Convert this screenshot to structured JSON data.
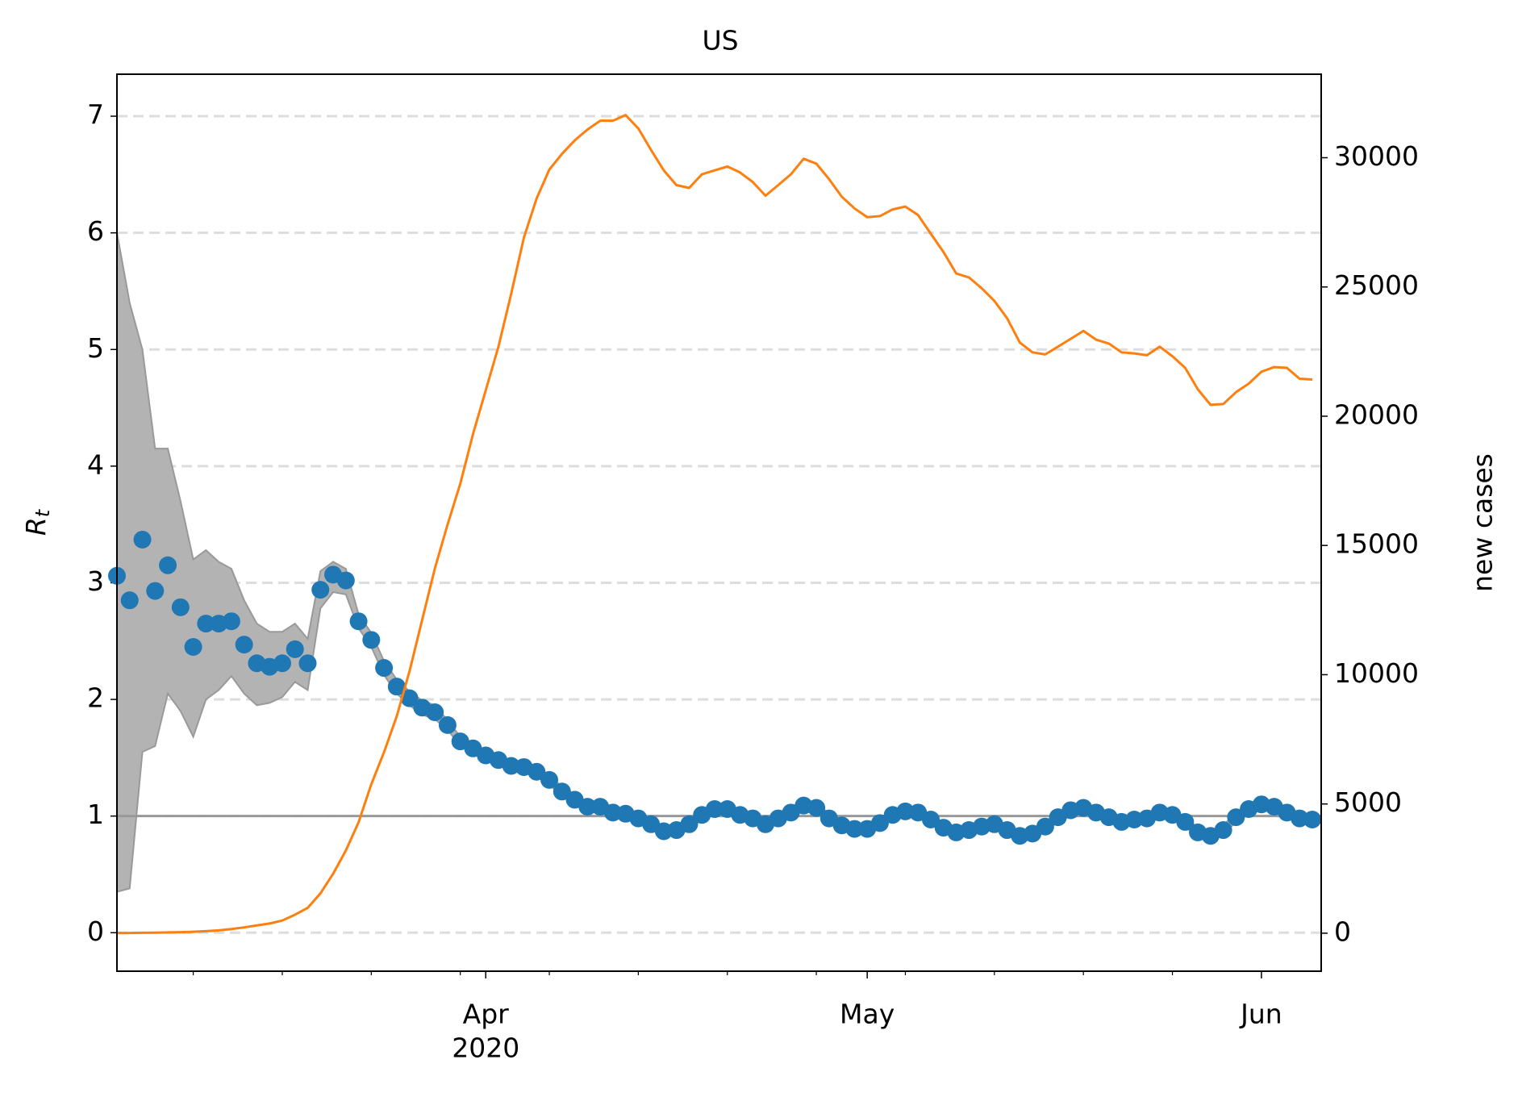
{
  "chart_data": {
    "type": "scatter",
    "title": "US",
    "ylabel": [
      "R",
      "t"
    ],
    "y2label": "new cases",
    "year_label": "2020",
    "categories": [
      null,
      null,
      null,
      null,
      null,
      null,
      null,
      null,
      null,
      null,
      null,
      null,
      null,
      null,
      null,
      null,
      null,
      null,
      null,
      null,
      null,
      null,
      null,
      null,
      null,
      null,
      null,
      null,
      null,
      "Apr",
      null,
      null,
      null,
      null,
      null,
      null,
      null,
      null,
      null,
      null,
      null,
      null,
      null,
      null,
      null,
      null,
      null,
      null,
      null,
      null,
      null,
      null,
      null,
      null,
      null,
      null,
      null,
      null,
      null,
      "May",
      null,
      null,
      null,
      null,
      null,
      null,
      null,
      null,
      null,
      null,
      null,
      null,
      null,
      null,
      null,
      null,
      null,
      null,
      null,
      null,
      null,
      null,
      null,
      null,
      null,
      null,
      null,
      null,
      null,
      null,
      "Jun",
      null,
      null,
      null,
      null
    ],
    "ylim": [
      -0.33,
      7.36
    ],
    "yticks": [
      0,
      1,
      2,
      3,
      4,
      5,
      6,
      7
    ],
    "y2lim": [
      -1470,
      33230
    ],
    "y2ticks": [
      0,
      5000,
      10000,
      15000,
      20000,
      25000,
      30000
    ],
    "grid": true,
    "reference_line": 1,
    "band": {
      "color": "#b3b3b3",
      "edge_color": "#999999",
      "upper": [
        6.0,
        5.4,
        5.0,
        4.15,
        4.15,
        3.7,
        3.2,
        3.28,
        3.18,
        3.12,
        2.85,
        2.65,
        2.58,
        2.58,
        2.65,
        2.52,
        3.1,
        3.18,
        3.12,
        2.73,
        2.57,
        2.33,
        2.17,
        2.07,
        1.99,
        1.95,
        1.82,
        1.68,
        1.62,
        1.56,
        1.52,
        1.47,
        1.46,
        1.42,
        1.35,
        1.25,
        1.18,
        1.12,
        1.12,
        1.07,
        1.06,
        1.02,
        0.97,
        0.91,
        0.92,
        0.97,
        1.05,
        1.1,
        1.1,
        1.05,
        1.02,
        0.97,
        1.02,
        1.07,
        1.13,
        1.11,
        1.02,
        0.96,
        0.93,
        0.93,
        0.98,
        1.05,
        1.08,
        1.07,
        1.01,
        0.94,
        0.9,
        0.92,
        0.95,
        0.97,
        0.92,
        0.87,
        0.89,
        0.95,
        1.03,
        1.09,
        1.11,
        1.07,
        1.03,
        0.99,
        1.01,
        1.02,
        1.07,
        1.05,
        0.99,
        0.9,
        0.87,
        0.92,
        1.03,
        1.1,
        1.14,
        1.12,
        1.07,
        1.02,
        1.01
      ],
      "lower": [
        0.35,
        0.38,
        1.55,
        1.6,
        2.05,
        1.9,
        1.68,
        2.0,
        2.08,
        2.2,
        2.05,
        1.95,
        1.97,
        2.02,
        2.15,
        2.08,
        2.78,
        2.92,
        2.9,
        2.61,
        2.45,
        2.21,
        2.05,
        1.95,
        1.87,
        1.83,
        1.74,
        1.6,
        1.54,
        1.48,
        1.44,
        1.39,
        1.38,
        1.34,
        1.27,
        1.17,
        1.1,
        1.04,
        1.04,
        0.99,
        0.98,
        0.94,
        0.89,
        0.83,
        0.84,
        0.89,
        0.97,
        1.02,
        1.02,
        0.97,
        0.94,
        0.89,
        0.94,
        0.99,
        1.05,
        1.03,
        0.94,
        0.88,
        0.85,
        0.85,
        0.9,
        0.97,
        1.0,
        0.99,
        0.93,
        0.86,
        0.82,
        0.84,
        0.87,
        0.89,
        0.84,
        0.79,
        0.81,
        0.87,
        0.95,
        1.01,
        1.03,
        0.99,
        0.95,
        0.91,
        0.93,
        0.94,
        0.99,
        0.97,
        0.91,
        0.82,
        0.79,
        0.84,
        0.95,
        1.02,
        1.06,
        1.04,
        0.99,
        0.94,
        0.93
      ]
    },
    "series": [
      {
        "type": "scatter",
        "color": "#1f77b4",
        "axis": "y",
        "values": [
          3.06,
          2.85,
          3.37,
          2.93,
          3.15,
          2.79,
          2.45,
          2.65,
          2.65,
          2.67,
          2.47,
          2.31,
          2.28,
          2.31,
          2.43,
          2.31,
          2.94,
          3.07,
          3.02,
          2.67,
          2.51,
          2.27,
          2.11,
          2.01,
          1.93,
          1.89,
          1.78,
          1.64,
          1.58,
          1.52,
          1.48,
          1.43,
          1.42,
          1.38,
          1.31,
          1.21,
          1.14,
          1.08,
          1.08,
          1.03,
          1.02,
          0.98,
          0.93,
          0.87,
          0.88,
          0.93,
          1.01,
          1.06,
          1.06,
          1.01,
          0.98,
          0.93,
          0.98,
          1.03,
          1.09,
          1.07,
          0.98,
          0.92,
          0.89,
          0.89,
          0.94,
          1.01,
          1.04,
          1.03,
          0.97,
          0.9,
          0.86,
          0.88,
          0.91,
          0.93,
          0.88,
          0.83,
          0.85,
          0.91,
          0.99,
          1.05,
          1.07,
          1.03,
          0.99,
          0.95,
          0.97,
          0.98,
          1.03,
          1.01,
          0.95,
          0.86,
          0.83,
          0.88,
          0.99,
          1.06,
          1.1,
          1.08,
          1.03,
          0.98,
          0.97
        ]
      },
      {
        "type": "line",
        "color": "#ff7f0e",
        "axis": "y2",
        "values": [
          5,
          10,
          15,
          20,
          30,
          40,
          55,
          80,
          110,
          160,
          225,
          300,
          375,
          490,
          715,
          980,
          1540,
          2300,
          3200,
          4290,
          5760,
          7000,
          8390,
          10120,
          12120,
          14110,
          15810,
          17390,
          19310,
          21000,
          22690,
          24730,
          26910,
          28420,
          29540,
          30150,
          30670,
          31090,
          31430,
          31430,
          31650,
          31130,
          30300,
          29510,
          28940,
          28830,
          29360,
          29510,
          29660,
          29430,
          29060,
          28530,
          28940,
          29360,
          29960,
          29770,
          29170,
          28490,
          28040,
          27700,
          27740,
          28000,
          28110,
          27780,
          27060,
          26350,
          25520,
          25370,
          24950,
          24460,
          23790,
          22850,
          22470,
          22390,
          22690,
          22990,
          23300,
          22960,
          22810,
          22470,
          22430,
          22360,
          22690,
          22320,
          21870,
          21040,
          20440,
          20470,
          20930,
          21260,
          21720,
          21900,
          21870,
          21450,
          21420
        ]
      }
    ]
  }
}
